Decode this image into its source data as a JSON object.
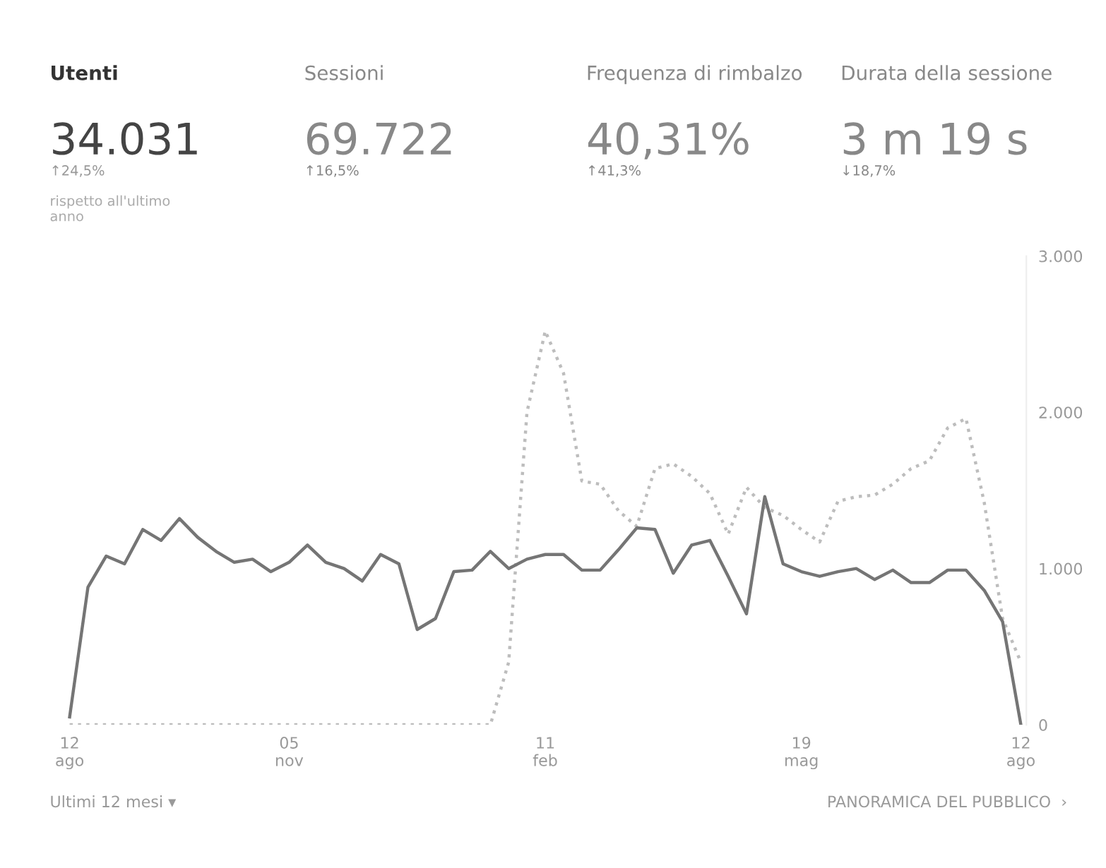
{
  "chart_data": [
    {
      "type": "other",
      "annotations": [
        "Utenti",
        "34.031",
        "↑24,5%",
        "rispetto all'ultimo\nanno",
        "Sessioni",
        "69.722",
        "↑16,5%",
        "Frequenza di rimbalzo",
        "40,31%",
        "↑41,3%",
        "Durata della sessione",
        "3 m 19 s",
        "↓18,7%"
      ]
    },
    {
      "type": "line",
      "categories": [
        "12\nago",
        null,
        null,
        null,
        null,
        null,
        null,
        null,
        null,
        null,
        null,
        null,
        "05\nnov",
        null,
        null,
        null,
        null,
        null,
        null,
        null,
        null,
        null,
        null,
        null,
        null,
        null,
        "11\nfeb",
        null,
        null,
        null,
        null,
        null,
        null,
        null,
        null,
        null,
        null,
        null,
        null,
        null,
        "19\nmag",
        null,
        null,
        null,
        null,
        null,
        null,
        null,
        null,
        null,
        null,
        null,
        "12\nago"
      ],
      "series": [
        {
          "color": "#bdbdbd",
          "line_style": "dotted",
          "values": [
            0,
            0,
            0,
            0,
            0,
            0,
            0,
            0,
            0,
            0,
            0,
            0,
            0,
            0,
            0,
            0,
            0,
            0,
            0,
            0,
            0,
            0,
            0,
            0,
            400,
            2000,
            2520,
            2250,
            1560,
            1540,
            1370,
            1270,
            1640,
            1670,
            1590,
            1480,
            1220,
            1520,
            1390,
            1340,
            1250,
            1170,
            1430,
            1460,
            1470,
            1540,
            1640,
            1690,
            1900,
            1960,
            1420,
            680,
            400
          ]
        },
        {
          "color": "#757575",
          "line_style": "solid",
          "values": [
            50,
            880,
            1080,
            1030,
            1250,
            1180,
            1320,
            1200,
            1110,
            1040,
            1060,
            980,
            1040,
            1150,
            1040,
            1000,
            920,
            1090,
            1030,
            610,
            680,
            980,
            990,
            1110,
            1000,
            1060,
            1090,
            1090,
            990,
            990,
            1120,
            1260,
            1250,
            970,
            1150,
            1180,
            950,
            710,
            1460,
            1030,
            980,
            950,
            980,
            1000,
            930,
            990,
            910,
            910,
            990,
            990,
            860,
            660,
            0
          ]
        }
      ],
      "ylim": [
        0,
        3000
      ],
      "yticks": [
        0,
        {
          "value": 1000,
          "label": "1.000"
        },
        {
          "value": 2000,
          "label": "2.000"
        },
        {
          "value": 3000,
          "label": "3.000"
        }
      ],
      "grid": false,
      "marker": "none",
      "annotations": [
        "Ultimi 12 mesi ▾",
        "PANORAMICA DEL PUBBLICO  ›"
      ]
    }
  ]
}
